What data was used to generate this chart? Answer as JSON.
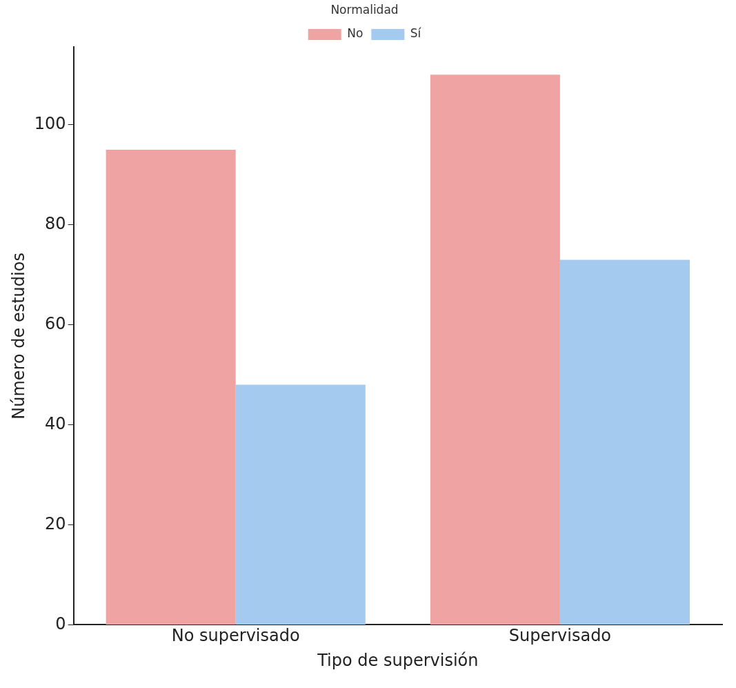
{
  "chart_data": {
    "type": "bar",
    "xlabel": "Tipo de supervisión",
    "ylabel": "Número de estudios",
    "legend_title": "Normalidad",
    "categories": [
      "No supervisado",
      "Supervisado"
    ],
    "series": [
      {
        "name": "No",
        "color": "#f0a3a3",
        "values": [
          95,
          110
        ]
      },
      {
        "name": "Sí",
        "color": "#a5caf0",
        "values": [
          48,
          73
        ]
      }
    ],
    "ylim": [
      0,
      115.5
    ],
    "yticks": [
      0,
      20,
      40,
      60,
      80,
      100
    ],
    "grid": false,
    "legend": "top"
  }
}
